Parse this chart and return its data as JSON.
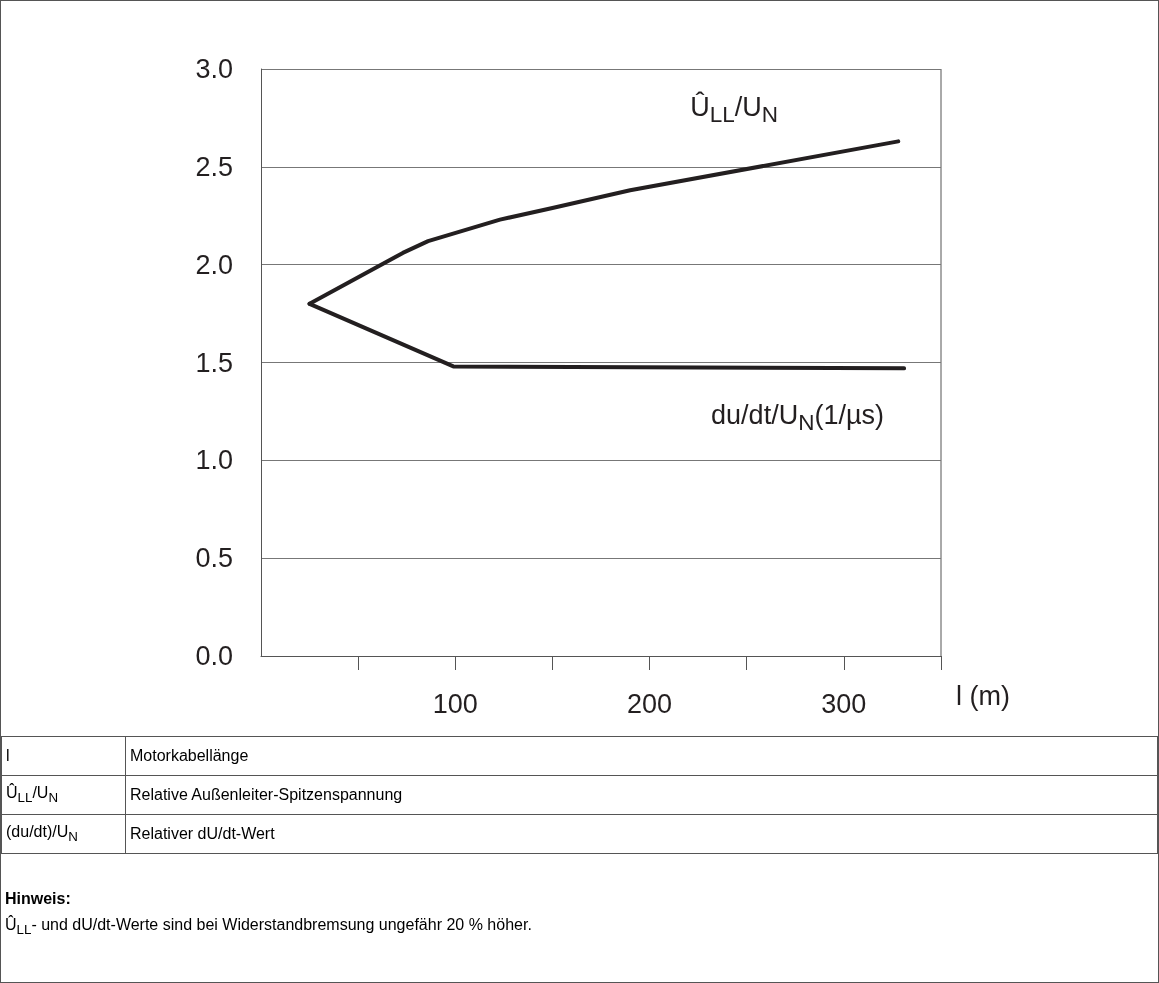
{
  "chart_data": {
    "type": "line",
    "xlabel": "l (m)",
    "xlim": [
      0,
      350
    ],
    "xticks": [
      {
        "value": 50,
        "label": null
      },
      100,
      {
        "value": 150,
        "label": null
      },
      200,
      {
        "value": 250,
        "label": null
      },
      300,
      {
        "value": 350,
        "label": null
      }
    ],
    "ylim": [
      0,
      3
    ],
    "yticks": [
      {
        "value": 0,
        "label": "0.0"
      },
      {
        "value": 0.5,
        "label": "0.5"
      },
      {
        "value": 1,
        "label": "1.0"
      },
      {
        "value": 1.5,
        "label": "1.5"
      },
      {
        "value": 2,
        "label": "2.0"
      },
      {
        "value": 2.5,
        "label": "2.5"
      },
      {
        "value": 3,
        "label": "3.0"
      }
    ],
    "grid": "y",
    "marker": "none",
    "line_style": "solid",
    "series": [
      {
        "name": "Û$_{LL}$/U$_{N}$",
        "color": "#231f20",
        "x": [
          25,
          73,
          86,
          123,
          150,
          190,
          328
        ],
        "values": [
          1.8,
          2.06,
          2.12,
          2.23,
          2.29,
          2.38,
          2.63
        ]
      },
      {
        "name": "du/dt/U$_{N}$(1/µs)",
        "color": "#231f20",
        "x": [
          25,
          99,
          331
        ],
        "values": [
          1.8,
          1.48,
          1.47
        ]
      }
    ],
    "annotations": [
      "l",
      "Motorkabellänge",
      "Û$_{LL}$/U$_{N}$",
      "Relative Außenleiter-Spitzenspannung",
      "(du/dt)/U$_{N}$",
      "Relativer dU/dt-Wert",
      "Hinweis:",
      "Û$_{LL}$- und dU/dt-Werte sind bei Widerstandbremsung ungefähr 20 % höher."
    ]
  }
}
